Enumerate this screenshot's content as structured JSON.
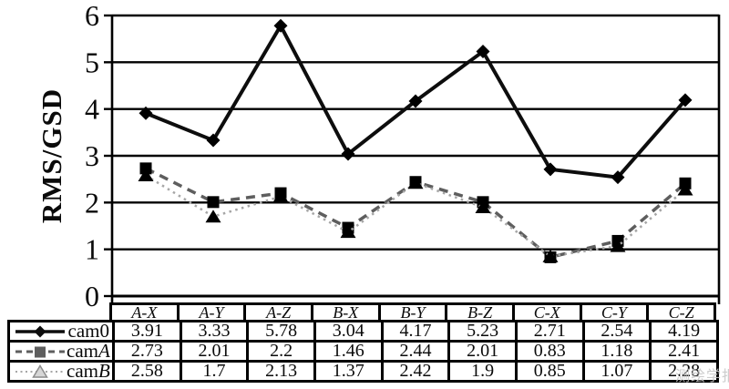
{
  "figure": {
    "y_axis_title": "RMS/GSD",
    "watermark_text": "测绘学报"
  },
  "chart_data": {
    "type": "line",
    "title": "",
    "xlabel": "",
    "ylabel": "RMS/GSD",
    "ylim": [
      0,
      6
    ],
    "y_ticks": [
      0,
      1,
      2,
      3,
      4,
      5,
      6
    ],
    "grid": "horizontal",
    "legend_position": "table-left",
    "categories": [
      "A-X",
      "A-Y",
      "A-Z",
      "B-X",
      "B-Y",
      "B-Z",
      "C-X",
      "C-Y",
      "C-Z"
    ],
    "series": [
      {
        "name": "cam0",
        "values": [
          3.91,
          3.33,
          5.78,
          3.04,
          4.17,
          5.23,
          2.71,
          2.54,
          4.19
        ],
        "color": "#0d0d0d",
        "marker": "diamond",
        "line_style": "solid"
      },
      {
        "name": "camA",
        "values": [
          2.73,
          2.01,
          2.2,
          1.46,
          2.44,
          2.01,
          0.83,
          1.18,
          2.41
        ],
        "color": "#5e5e5e",
        "marker": "square",
        "line_style": "dashed"
      },
      {
        "name": "camB",
        "values": [
          2.58,
          1.7,
          2.13,
          1.37,
          2.42,
          1.9,
          0.85,
          1.07,
          2.28
        ],
        "color": "#a6a6a6",
        "marker": "triangle",
        "marker_fill": "#d6d6d6",
        "marker_stroke": "#8c8c8c",
        "line_style": "dotted"
      }
    ]
  },
  "table": {
    "legend": [
      {
        "prefix": "cam",
        "suffix": "0",
        "suffix_italic": false
      },
      {
        "prefix": "cam",
        "suffix": "A",
        "suffix_italic": true
      },
      {
        "prefix": "cam",
        "suffix": "B",
        "suffix_italic": true
      }
    ]
  }
}
